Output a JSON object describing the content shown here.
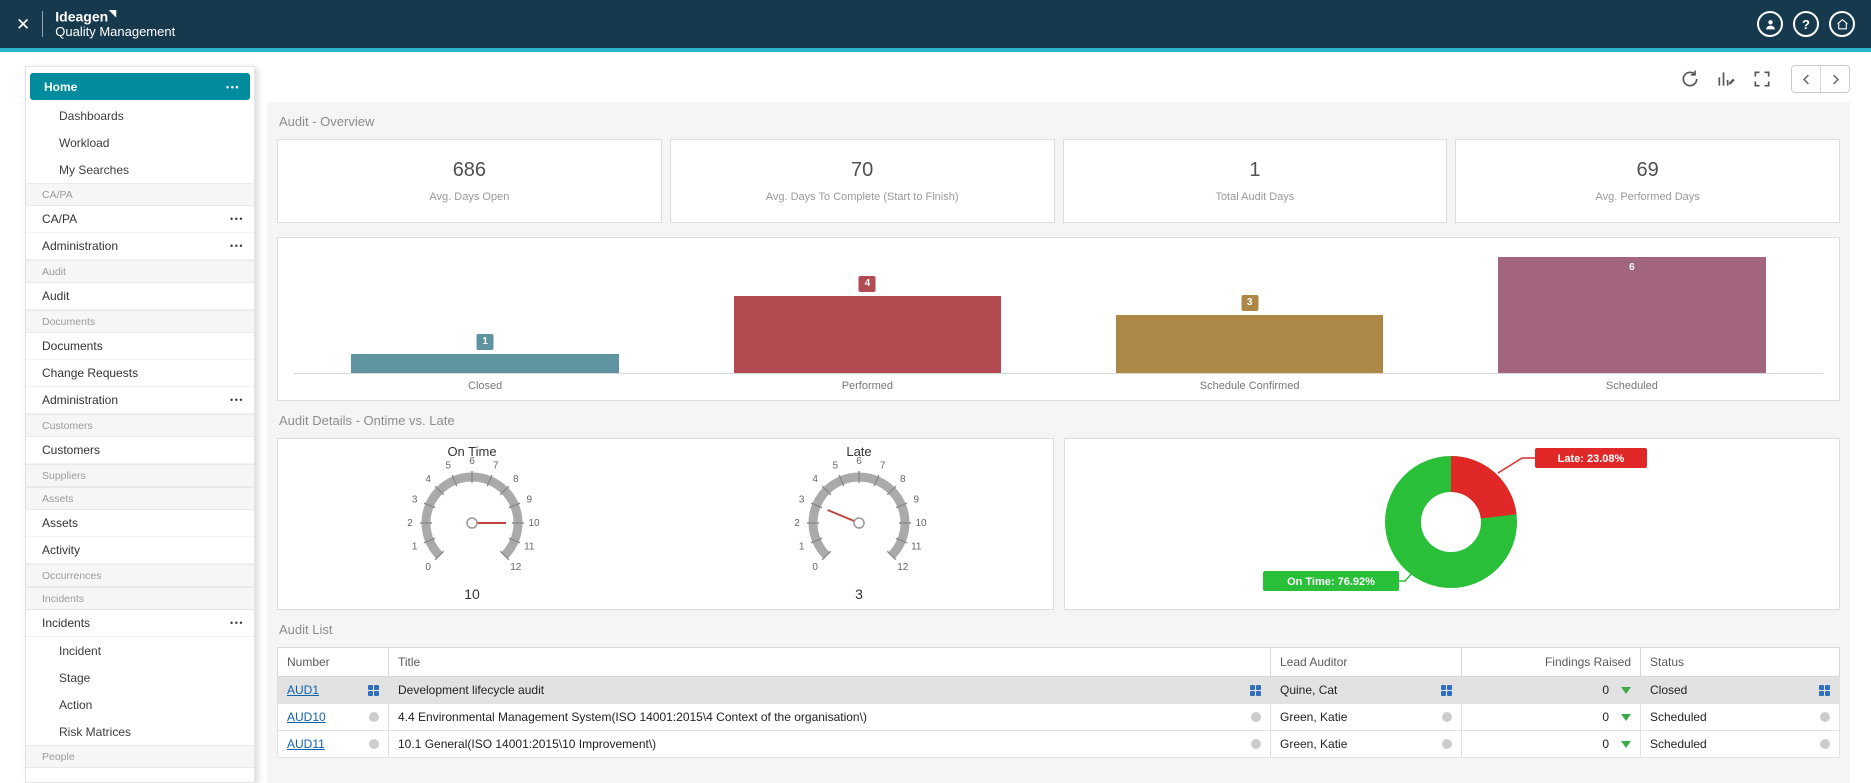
{
  "header": {
    "close_icon": "✕",
    "brand": "Ideagen",
    "product": "Quality Management",
    "help_glyph": "?"
  },
  "icons": {
    "ellipsis": "•••",
    "findings_triangle": "▼",
    "toolbar": [
      "refresh-icon",
      "chart-edit-icon",
      "expand-icon",
      "chevron-left-icon",
      "chevron-right-icon"
    ],
    "header": [
      "user-icon",
      "help-icon",
      "home-icon"
    ]
  },
  "sidebar": {
    "active_color": "#008c9c",
    "items": [
      {
        "label": "Home",
        "type": "active",
        "has_menu": true
      },
      {
        "label": "Dashboards",
        "type": "child"
      },
      {
        "label": "Workload",
        "type": "child"
      },
      {
        "label": "My Searches",
        "type": "child"
      },
      {
        "label": "CA/PA",
        "type": "section"
      },
      {
        "label": "CA/PA",
        "type": "item",
        "has_menu": true
      },
      {
        "label": "Administration",
        "type": "item",
        "has_menu": true
      },
      {
        "label": "Audit",
        "type": "section"
      },
      {
        "label": "Audit",
        "type": "item"
      },
      {
        "label": "Documents",
        "type": "section"
      },
      {
        "label": "Documents",
        "type": "item"
      },
      {
        "label": "Change Requests",
        "type": "item"
      },
      {
        "label": "Administration",
        "type": "item",
        "has_menu": true
      },
      {
        "label": "Customers",
        "type": "section"
      },
      {
        "label": "Customers",
        "type": "item"
      },
      {
        "label": "Suppliers",
        "type": "section"
      },
      {
        "label": "Assets",
        "type": "section"
      },
      {
        "label": "Assets",
        "type": "item"
      },
      {
        "label": "Activity",
        "type": "item"
      },
      {
        "label": "Occurrences",
        "type": "section"
      },
      {
        "label": "Incidents",
        "type": "section"
      },
      {
        "label": "Incidents",
        "type": "item",
        "has_menu": true
      },
      {
        "label": "Incident",
        "type": "child"
      },
      {
        "label": "Stage",
        "type": "child"
      },
      {
        "label": "Action",
        "type": "child"
      },
      {
        "label": "Risk Matrices",
        "type": "child"
      },
      {
        "label": "People",
        "type": "section"
      }
    ]
  },
  "overview": {
    "title": "Audit - Overview",
    "kpis": [
      {
        "value": "686",
        "label": "Avg. Days Open"
      },
      {
        "value": "70",
        "label": "Avg. Days To Complete (Start to Finish)"
      },
      {
        "value": "1",
        "label": "Total Audit Days"
      },
      {
        "value": "69",
        "label": "Avg. Performed Days"
      }
    ]
  },
  "details": {
    "title": "Audit Details - Ontime vs. Late"
  },
  "audit_list": {
    "title": "Audit List",
    "columns": [
      "Number",
      "Title",
      "Lead Auditor",
      "Findings Raised",
      "Status"
    ],
    "rows": [
      {
        "number": "AUD1",
        "title": "Development lifecycle audit",
        "lead_auditor": "Quine, Cat",
        "findings_raised": "0",
        "status": "Closed",
        "selected": true
      },
      {
        "number": "AUD10",
        "title": "4.4 Environmental Management System(ISO 14001:2015\\4 Context of the organisation\\)",
        "lead_auditor": "Green, Katie",
        "findings_raised": "0",
        "status": "Scheduled",
        "selected": false
      },
      {
        "number": "AUD11",
        "title": "10.1 General(ISO 14001:2015\\10 Improvement\\)",
        "lead_auditor": "Green, Katie",
        "findings_raised": "0",
        "status": "Scheduled",
        "selected": false
      }
    ]
  },
  "chart_data": [
    {
      "type": "bar",
      "title": "Audit - Overview",
      "categories": [
        "Closed",
        "Performed",
        "Schedule Confirmed",
        "Scheduled"
      ],
      "values": [
        1,
        4,
        3,
        6
      ],
      "colors": [
        "#5f93a0",
        "#b24a51",
        "#ad8746",
        "#a3657e"
      ],
      "xlabel": "",
      "ylabel": "",
      "ylim": [
        0,
        6
      ],
      "grid": false
    },
    {
      "type": "gauge",
      "title": "On Time",
      "value": 10,
      "min": 0,
      "max": 12
    },
    {
      "type": "gauge",
      "title": "Late",
      "value": 3,
      "min": 0,
      "max": 12
    },
    {
      "type": "pie",
      "title": "Ontime vs. Late",
      "slices": [
        {
          "label": "On Time",
          "pct": 76.92,
          "color": "#29bf39",
          "annotation": "On Time: 76.92%"
        },
        {
          "label": "Late",
          "pct": 23.08,
          "color": "#e02828",
          "annotation": "Late: 23.08%"
        }
      ],
      "legend": "annotations"
    }
  ]
}
